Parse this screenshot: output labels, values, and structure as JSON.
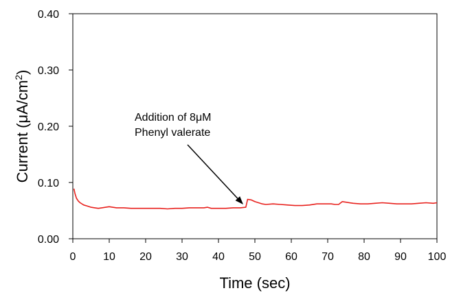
{
  "chart_data": {
    "type": "line",
    "title": "",
    "xlabel": "Time (sec)",
    "ylabel_main": "Current (μA/cm",
    "ylabel_sup": "2",
    "ylabel_close": ")",
    "xlim": [
      0,
      100
    ],
    "ylim": [
      0.0,
      0.4
    ],
    "xticks": [
      0,
      10,
      20,
      30,
      40,
      50,
      60,
      70,
      80,
      90,
      100
    ],
    "xtick_labels": [
      "0",
      "10",
      "20",
      "30",
      "40",
      "50",
      "60",
      "70",
      "80",
      "90",
      "100"
    ],
    "yticks": [
      0.0,
      0.1,
      0.2,
      0.3,
      0.4
    ],
    "ytick_labels": [
      "0.00",
      "0.10",
      "0.20",
      "0.30",
      "0.40"
    ],
    "grid": false,
    "legend": "none",
    "series": [
      {
        "color": "#e8201c",
        "x": [
          0.3,
          0.6,
          1,
          1.5,
          2,
          3,
          4,
          5,
          6,
          7,
          8,
          9,
          10,
          12,
          14,
          16,
          18,
          20,
          22,
          24,
          26,
          28,
          30,
          32,
          34,
          36,
          37,
          38,
          40,
          42,
          44,
          46,
          47.5,
          47.8,
          48,
          49,
          50,
          51,
          52,
          53,
          55,
          57,
          59,
          61,
          63,
          65,
          67,
          69,
          71,
          72,
          73,
          74,
          75,
          77,
          79,
          81,
          83,
          85,
          87,
          89,
          91,
          93,
          95,
          97,
          99,
          100
        ],
        "y": [
          0.089,
          0.08,
          0.072,
          0.067,
          0.064,
          0.06,
          0.058,
          0.056,
          0.055,
          0.054,
          0.055,
          0.056,
          0.057,
          0.055,
          0.055,
          0.054,
          0.054,
          0.054,
          0.054,
          0.054,
          0.053,
          0.054,
          0.054,
          0.055,
          0.055,
          0.055,
          0.056,
          0.054,
          0.054,
          0.054,
          0.055,
          0.055,
          0.056,
          0.064,
          0.07,
          0.069,
          0.066,
          0.064,
          0.062,
          0.061,
          0.062,
          0.061,
          0.06,
          0.059,
          0.059,
          0.06,
          0.062,
          0.062,
          0.062,
          0.061,
          0.061,
          0.066,
          0.065,
          0.063,
          0.062,
          0.062,
          0.063,
          0.064,
          0.063,
          0.062,
          0.062,
          0.062,
          0.063,
          0.064,
          0.063,
          0.064
        ]
      }
    ],
    "annotations": [
      {
        "lines": [
          "Addition of 8μM",
          "Phenyl valerate"
        ],
        "arrow_target": {
          "x": 46.8,
          "y": 0.061
        }
      }
    ]
  }
}
